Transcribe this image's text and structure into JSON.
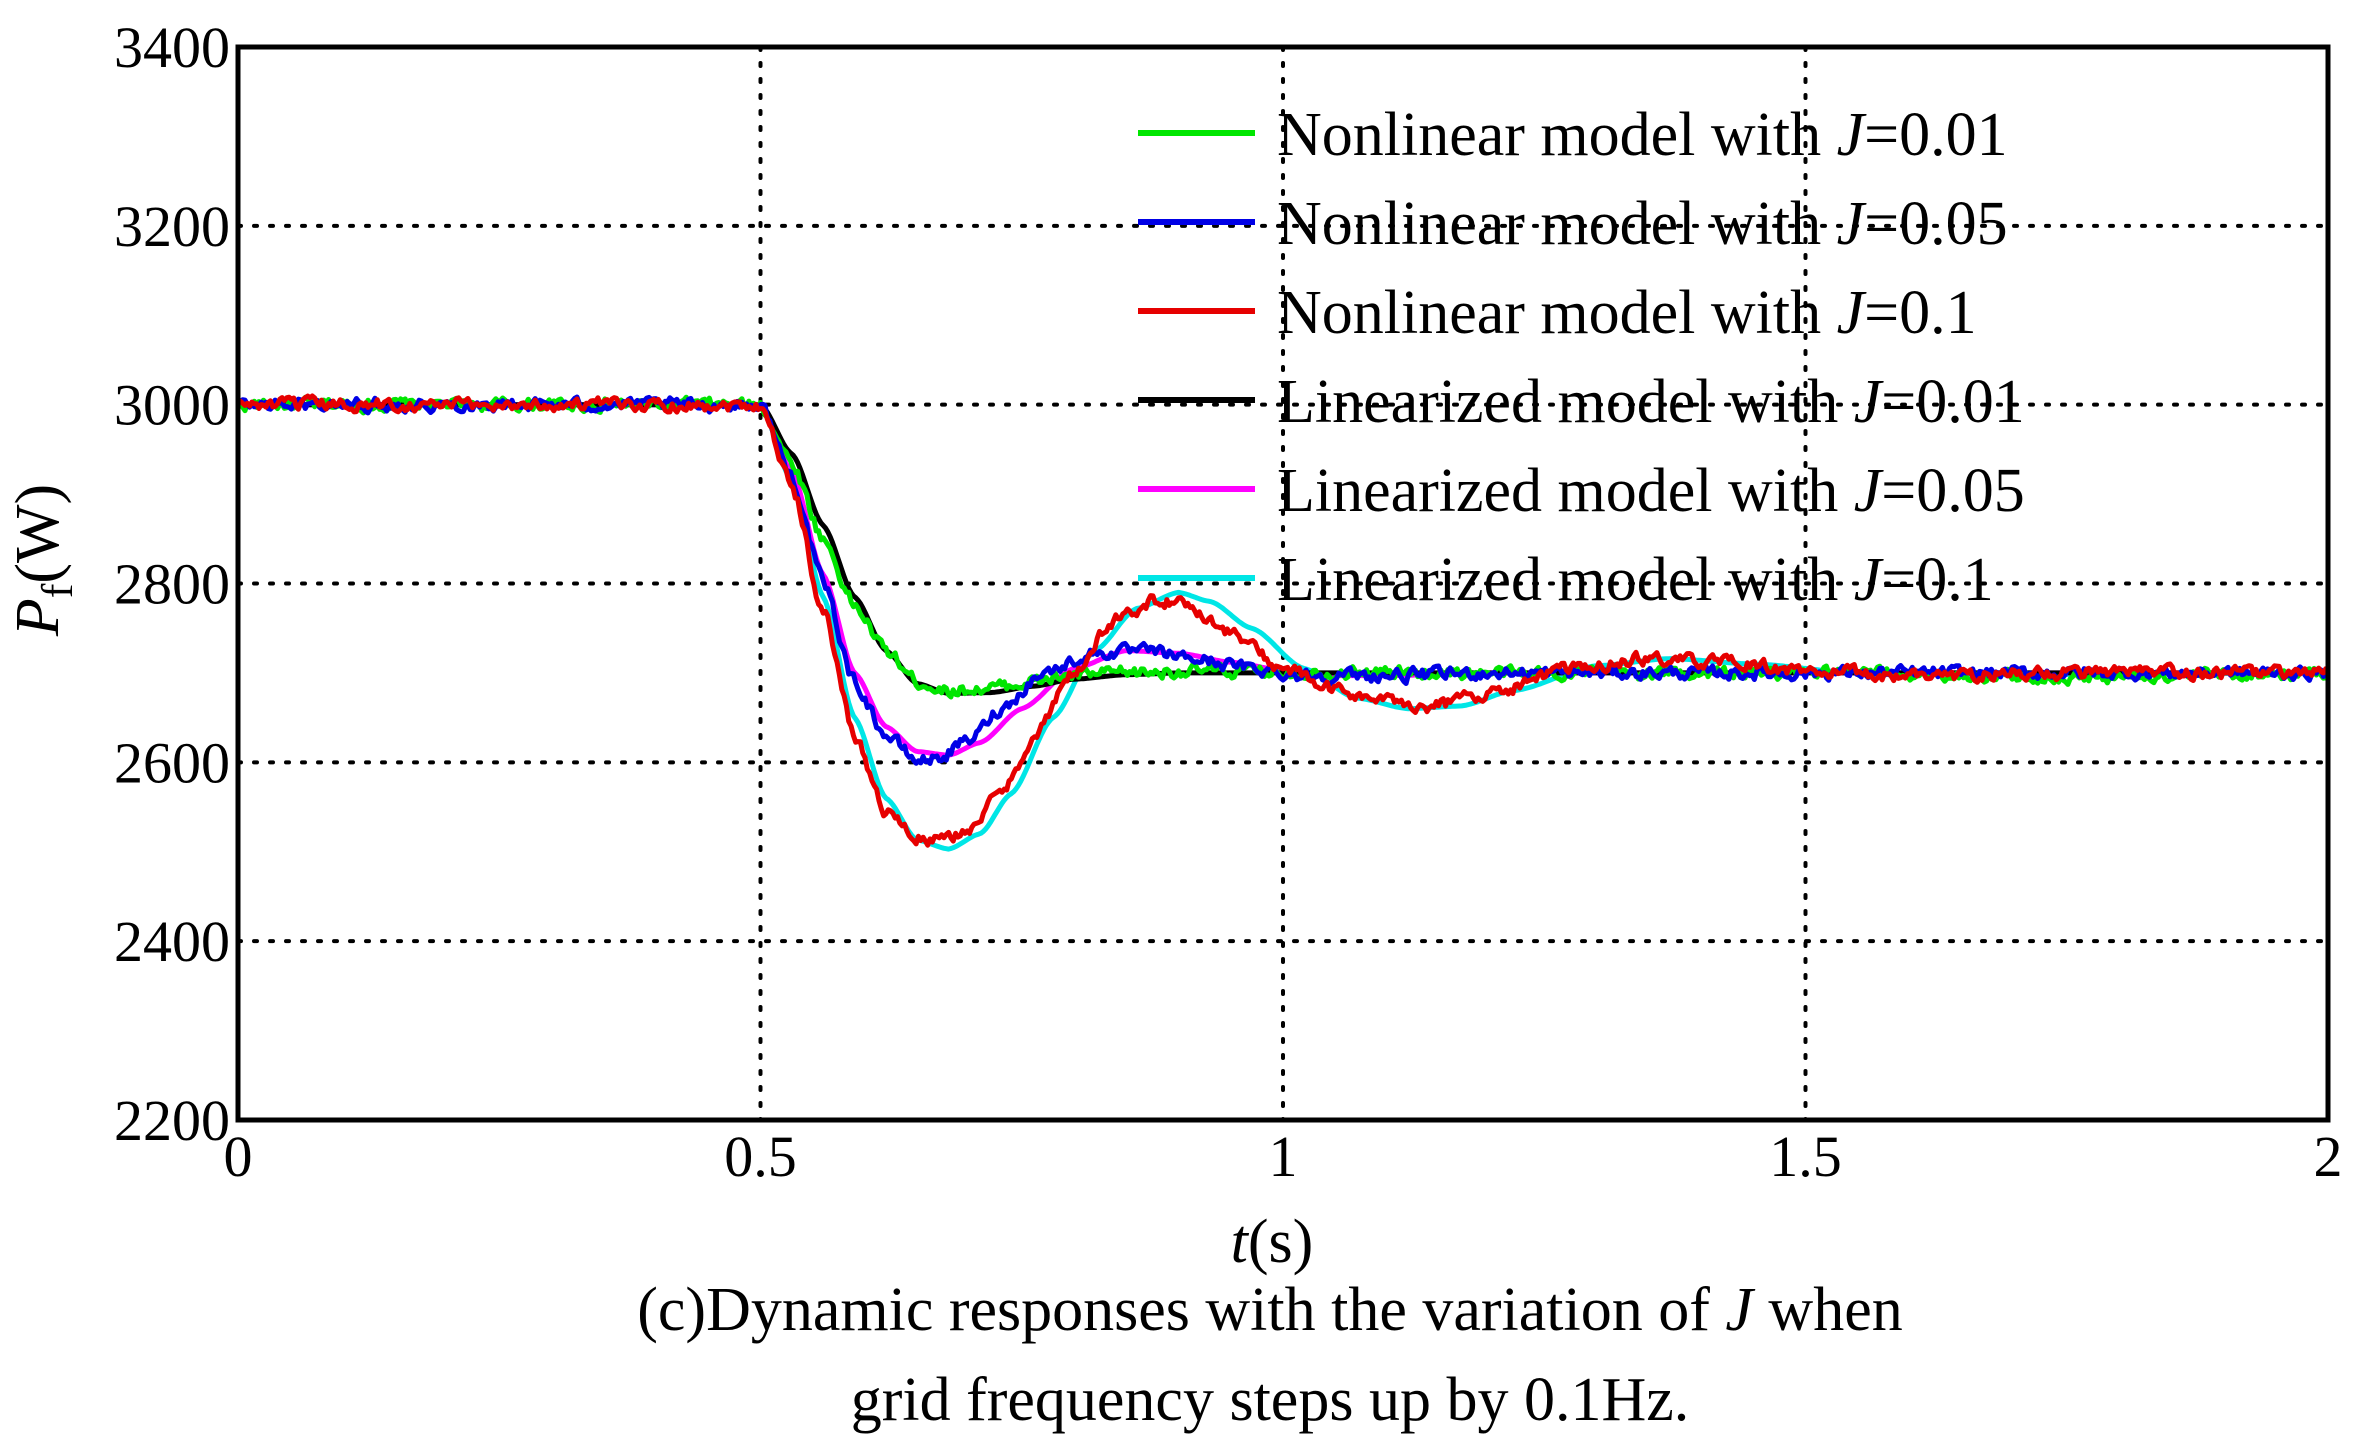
{
  "chart_data": {
    "type": "line",
    "xlabel": {
      "var": "t",
      "unit": "(s)"
    },
    "ylabel": {
      "var": "P",
      "sub": "f",
      "unit": "(W)"
    },
    "xlim": [
      0,
      2
    ],
    "ylim": [
      2200,
      3400
    ],
    "xticks": [
      0,
      0.5,
      1,
      1.5,
      2
    ],
    "xtick_labels": [
      "0",
      "0.5",
      "1",
      "1.5",
      "2"
    ],
    "yticks": [
      2200,
      2400,
      2600,
      2800,
      3000,
      3200,
      3400
    ],
    "ytick_labels": [
      "2200",
      "2400",
      "2600",
      "2800",
      "3000",
      "3200",
      "3400"
    ],
    "grid": true,
    "legend_position": "top-right",
    "series": [
      {
        "name": "Nonlinear model with J=0.01",
        "label_prefix": "Nonlinear model with ",
        "label_var": "J",
        "label_suffix": "=0.01",
        "color": "#00e600",
        "noisy": true,
        "x": [
          0,
          0.5,
          0.53,
          0.56,
          0.59,
          0.62,
          0.65,
          0.68,
          0.72,
          0.76,
          0.8,
          0.85,
          0.9,
          1.0,
          1.2,
          1.5,
          1.75,
          2.0
        ],
        "y": [
          3000,
          3000,
          2935,
          2850,
          2775,
          2725,
          2690,
          2680,
          2683,
          2690,
          2697,
          2700,
          2702,
          2701,
          2700,
          2700,
          2695,
          2700
        ]
      },
      {
        "name": "Nonlinear model with J=0.05",
        "label_prefix": "Nonlinear model with ",
        "label_var": "J",
        "label_suffix": "=0.05",
        "color": "#0000e6",
        "noisy": true,
        "x": [
          0,
          0.5,
          0.53,
          0.56,
          0.59,
          0.62,
          0.65,
          0.67,
          0.7,
          0.73,
          0.77,
          0.82,
          0.87,
          0.92,
          0.97,
          1.02,
          1.1,
          1.2,
          1.35,
          1.5,
          1.75,
          2.0
        ],
        "y": [
          3000,
          3000,
          2920,
          2800,
          2690,
          2630,
          2602,
          2605,
          2625,
          2660,
          2700,
          2722,
          2724,
          2715,
          2705,
          2697,
          2697,
          2700,
          2700,
          2700,
          2700,
          2700
        ]
      },
      {
        "name": "Nonlinear model with J=0.1",
        "label_prefix": "Nonlinear model with ",
        "label_var": "J",
        "label_suffix": "=0.1",
        "color": "#e60000",
        "noisy": true,
        "x": [
          0,
          0.5,
          0.53,
          0.56,
          0.59,
          0.62,
          0.65,
          0.67,
          0.7,
          0.73,
          0.76,
          0.8,
          0.84,
          0.88,
          0.91,
          0.95,
          1.0,
          1.05,
          1.1,
          1.14,
          1.2,
          1.27,
          1.35,
          1.42,
          1.5,
          1.6,
          1.75,
          2.0
        ],
        "y": [
          3000,
          3000,
          2910,
          2770,
          2630,
          2545,
          2515,
          2512,
          2525,
          2565,
          2625,
          2700,
          2760,
          2782,
          2775,
          2745,
          2705,
          2680,
          2668,
          2663,
          2678,
          2703,
          2716,
          2712,
          2702,
          2697,
          2700,
          2700
        ]
      },
      {
        "name": "Linearized model with J=0.01",
        "label_prefix": "Linearized model with ",
        "label_var": "J",
        "label_suffix": "=0.01",
        "color": "#000000",
        "noisy": false,
        "x": [
          0,
          0.5,
          0.53,
          0.56,
          0.59,
          0.62,
          0.65,
          0.68,
          0.72,
          0.76,
          0.8,
          0.85,
          0.9,
          1.0,
          1.2,
          1.5,
          2.0
        ],
        "y": [
          3000,
          3000,
          2945,
          2865,
          2785,
          2725,
          2688,
          2677,
          2678,
          2685,
          2693,
          2698,
          2700,
          2700,
          2700,
          2700,
          2700
        ]
      },
      {
        "name": "Linearized model with J=0.05",
        "label_prefix": "Linearized model with ",
        "label_var": "J",
        "label_suffix": "=0.05",
        "color": "#ff00ff",
        "noisy": false,
        "x": [
          0,
          0.5,
          0.53,
          0.56,
          0.59,
          0.62,
          0.65,
          0.68,
          0.71,
          0.75,
          0.8,
          0.85,
          0.9,
          0.95,
          1.0,
          1.05,
          1.1,
          1.2,
          1.5,
          2.0
        ],
        "y": [
          3000,
          3000,
          2925,
          2810,
          2700,
          2640,
          2612,
          2608,
          2622,
          2660,
          2705,
          2725,
          2722,
          2712,
          2703,
          2697,
          2697,
          2700,
          2700,
          2700
        ]
      },
      {
        "name": "Linearized model with J=0.1",
        "label_prefix": "Linearized model with ",
        "label_var": "J",
        "label_suffix": "=0.1",
        "color": "#00e6e6",
        "noisy": false,
        "x": [
          0,
          0.5,
          0.53,
          0.56,
          0.59,
          0.62,
          0.65,
          0.68,
          0.71,
          0.74,
          0.78,
          0.82,
          0.86,
          0.9,
          0.93,
          0.97,
          1.02,
          1.07,
          1.12,
          1.17,
          1.22,
          1.3,
          1.37,
          1.45,
          1.55,
          1.7,
          2.0
        ],
        "y": [
          3000,
          3000,
          2915,
          2785,
          2650,
          2560,
          2513,
          2503,
          2520,
          2565,
          2650,
          2725,
          2772,
          2790,
          2780,
          2750,
          2705,
          2672,
          2660,
          2663,
          2680,
          2708,
          2716,
          2710,
          2700,
          2698,
          2700
        ]
      }
    ],
    "caption": {
      "line1_prefix": "(c)Dynamic responses with the variation of ",
      "line1_var": "J",
      "line1_suffix": " when",
      "line2": "grid frequency steps up by 0.1Hz."
    }
  }
}
